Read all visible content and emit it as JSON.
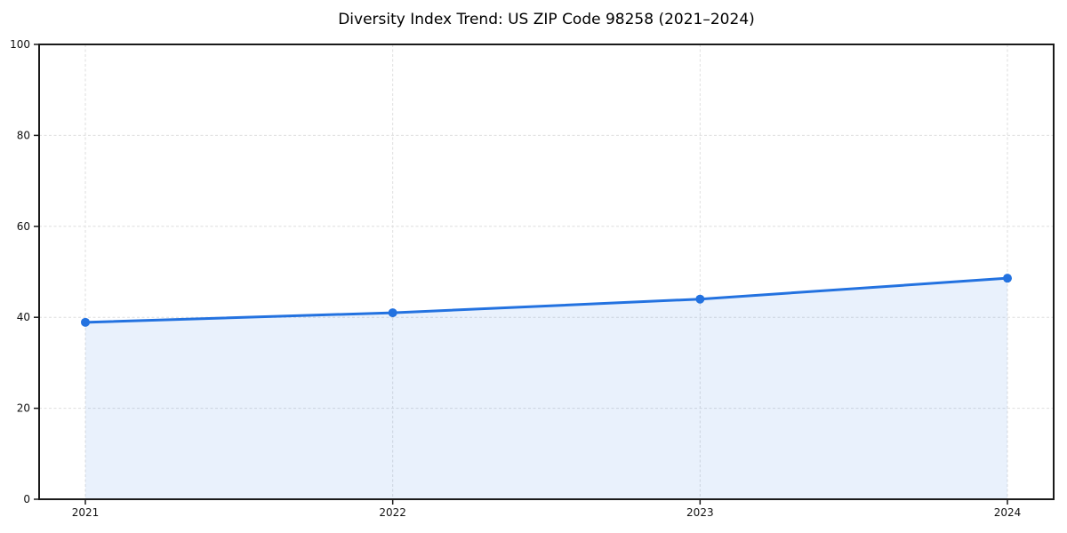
{
  "figure": {
    "background": "#ffffff"
  },
  "chart_data": {
    "type": "area",
    "title": "Diversity Index Trend: US ZIP Code 98258 (2021–2024)",
    "x": [
      "2021",
      "2022",
      "2023",
      "2024"
    ],
    "values": [
      38.9,
      41.0,
      44.0,
      48.6
    ],
    "xlabel": "",
    "ylabel": "",
    "ylim": [
      0,
      100
    ],
    "yticks": [
      0,
      20,
      40,
      60,
      80,
      100
    ],
    "grid": "dashed-both",
    "legend": "none",
    "marker": "circle",
    "colors": {
      "line": "#2372e0",
      "fill": "rgba(35,114,224,0.10)",
      "grid": "#dedede",
      "axis": "#1a1a1a",
      "text": "#111111"
    }
  }
}
